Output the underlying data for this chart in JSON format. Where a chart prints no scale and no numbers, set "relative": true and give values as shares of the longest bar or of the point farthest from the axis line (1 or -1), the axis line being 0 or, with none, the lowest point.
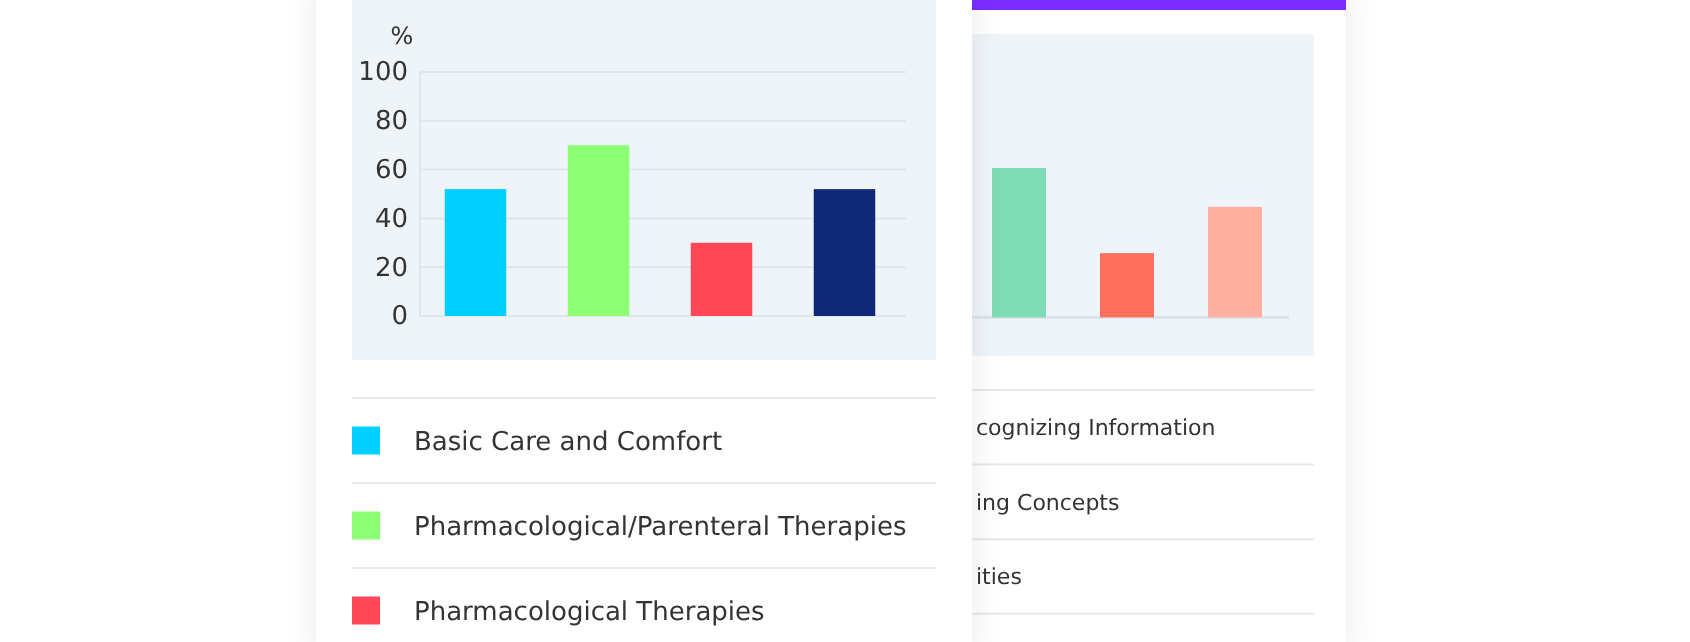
{
  "chart_data": [
    {
      "type": "bar",
      "ylabel": "%",
      "categories": [
        null,
        null,
        null,
        null
      ],
      "series": [
        {
          "name": "Basic Care and Comfort",
          "color": "#00cfff",
          "values": [
            52,
            null,
            null,
            null
          ]
        },
        {
          "name": "Pharmacological/Parenteral Therapies",
          "color": "#8cff74",
          "values": [
            null,
            70,
            null,
            null
          ]
        },
        {
          "name": "Pharmacological Therapies",
          "color": "#ff4757",
          "values": [
            null,
            null,
            30,
            null
          ]
        },
        {
          "color": "#0f2878",
          "values": [
            null,
            null,
            null,
            52
          ]
        }
      ],
      "ylim": [
        0,
        100
      ],
      "yticks": [
        0,
        20,
        40,
        60,
        80,
        100
      ],
      "grid": "y",
      "legend": "bottom",
      "tick_labels": "y"
    },
    {
      "type": "bar",
      "relative": true,
      "categories": [
        null,
        null,
        null
      ],
      "values": [
        1,
        0.43,
        0.74
      ],
      "colors": [
        "#80dcb4",
        "#ff6f5e",
        "#ffaf9f"
      ],
      "tick_labels": false,
      "annotations": [
        "cognizing Information",
        "ing Concepts",
        "ities"
      ]
    }
  ]
}
